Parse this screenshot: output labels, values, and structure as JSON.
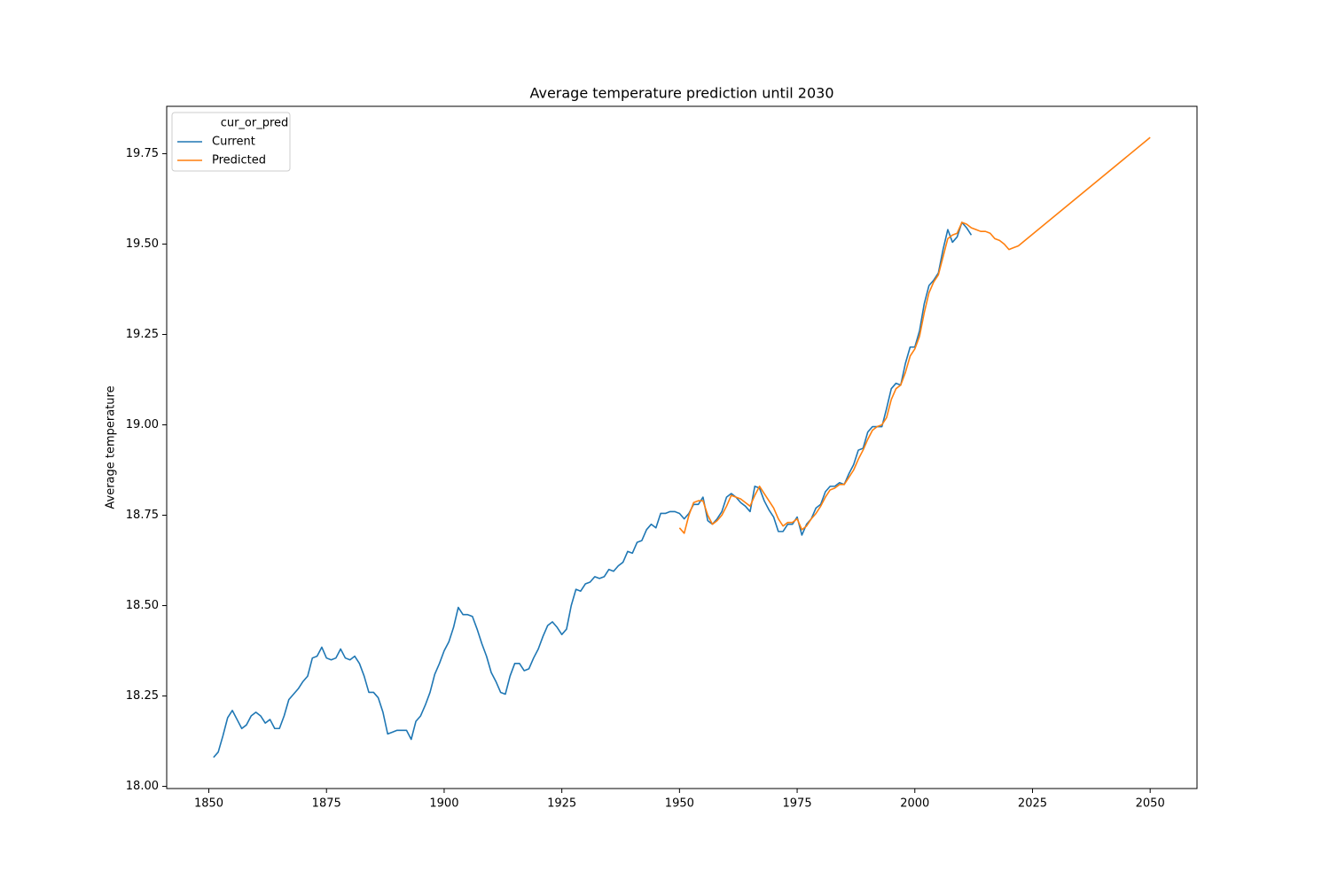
{
  "chart_data": {
    "type": "line",
    "title": "Average temperature prediction until 2030",
    "y_label": "Average temperature",
    "legend_title": "cur_or_pred",
    "legend_position": "upper left",
    "xlim": [
      1841.05,
      2059.95
    ],
    "ylim": [
      17.994,
      19.881
    ],
    "xticks": [
      1850,
      1875,
      1900,
      1925,
      1950,
      1975,
      2000,
      2025,
      2050
    ],
    "yticks": [
      {
        "value": 18,
        "label": "18.00"
      },
      18.25,
      {
        "value": 18.5,
        "label": "18.50"
      },
      18.75,
      {
        "value": 19,
        "label": "19.00"
      },
      19.25,
      {
        "value": 19.5,
        "label": "19.50"
      },
      19.75
    ],
    "series": [
      {
        "name": "Current",
        "color": "#1f77b4",
        "x": [
          1851,
          1852,
          1853,
          1854,
          1855,
          1856,
          1857,
          1858,
          1859,
          1860,
          1861,
          1862,
          1863,
          1864,
          1865,
          1866,
          1867,
          1868,
          1869,
          1870,
          1871,
          1872,
          1873,
          1874,
          1875,
          1876,
          1877,
          1878,
          1879,
          1880,
          1881,
          1882,
          1883,
          1884,
          1885,
          1886,
          1887,
          1888,
          1889,
          1890,
          1891,
          1892,
          1893,
          1894,
          1895,
          1896,
          1897,
          1898,
          1899,
          1900,
          1901,
          1902,
          1903,
          1904,
          1905,
          1906,
          1907,
          1908,
          1909,
          1910,
          1911,
          1912,
          1913,
          1914,
          1915,
          1916,
          1917,
          1918,
          1919,
          1920,
          1921,
          1922,
          1923,
          1924,
          1925,
          1926,
          1927,
          1928,
          1929,
          1930,
          1931,
          1932,
          1933,
          1934,
          1935,
          1936,
          1937,
          1938,
          1939,
          1940,
          1941,
          1942,
          1943,
          1944,
          1945,
          1946,
          1947,
          1948,
          1949,
          1950,
          1951,
          1952,
          1953,
          1954,
          1955,
          1956,
          1957,
          1958,
          1959,
          1960,
          1961,
          1962,
          1963,
          1964,
          1965,
          1966,
          1967,
          1968,
          1969,
          1970,
          1971,
          1972,
          1973,
          1974,
          1975,
          1976,
          1977,
          1978,
          1979,
          1980,
          1981,
          1982,
          1983,
          1984,
          1985,
          1986,
          1987,
          1988,
          1989,
          1990,
          1991,
          1992,
          1993,
          1994,
          1995,
          1996,
          1997,
          1998,
          1999,
          2000,
          2001,
          2002,
          2003,
          2004,
          2005,
          2006,
          2007,
          2008,
          2009,
          2010,
          2011,
          2012
        ],
        "values": [
          18.08,
          18.095,
          18.14,
          18.19,
          18.21,
          18.185,
          18.16,
          18.17,
          18.195,
          18.205,
          18.195,
          18.175,
          18.185,
          18.16,
          18.16,
          18.195,
          18.24,
          18.255,
          18.27,
          18.29,
          18.305,
          18.355,
          18.36,
          18.385,
          18.355,
          18.35,
          18.355,
          18.38,
          18.355,
          18.35,
          18.36,
          18.34,
          18.305,
          18.26,
          18.26,
          18.245,
          18.205,
          18.145,
          18.15,
          18.155,
          18.155,
          18.155,
          18.13,
          18.18,
          18.195,
          18.225,
          18.26,
          18.31,
          18.34,
          18.375,
          18.4,
          18.44,
          18.495,
          18.475,
          18.475,
          18.47,
          18.435,
          18.395,
          18.36,
          18.315,
          18.29,
          18.26,
          18.255,
          18.305,
          18.34,
          18.34,
          18.32,
          18.325,
          18.355,
          18.38,
          18.415,
          18.445,
          18.455,
          18.44,
          18.42,
          18.435,
          18.5,
          18.545,
          18.54,
          18.56,
          18.565,
          18.58,
          18.575,
          18.58,
          18.6,
          18.595,
          18.61,
          18.62,
          18.65,
          18.645,
          18.675,
          18.68,
          18.71,
          18.725,
          18.715,
          18.755,
          18.755,
          18.76,
          18.76,
          18.755,
          18.74,
          18.755,
          18.78,
          18.78,
          18.8,
          18.735,
          18.725,
          18.74,
          18.76,
          18.8,
          18.81,
          18.8,
          18.785,
          18.775,
          18.76,
          18.83,
          18.825,
          18.79,
          18.765,
          18.745,
          18.705,
          18.705,
          18.725,
          18.725,
          18.745,
          18.695,
          18.725,
          18.74,
          18.77,
          18.78,
          18.815,
          18.83,
          18.83,
          18.84,
          18.835,
          18.865,
          18.89,
          18.93,
          18.935,
          18.98,
          18.995,
          18.995,
          18.995,
          19.045,
          19.1,
          19.115,
          19.11,
          19.17,
          19.215,
          19.215,
          19.26,
          19.335,
          19.385,
          19.4,
          19.42,
          19.485,
          19.54,
          19.505,
          19.52,
          19.56,
          19.545,
          19.525
        ]
      },
      {
        "name": "Predicted",
        "color": "#ff7f0e",
        "x": [
          1950,
          1951,
          1952,
          1953,
          1954,
          1955,
          1956,
          1957,
          1958,
          1959,
          1960,
          1961,
          1962,
          1963,
          1964,
          1965,
          1966,
          1967,
          1968,
          1969,
          1970,
          1971,
          1972,
          1973,
          1974,
          1975,
          1976,
          1977,
          1978,
          1979,
          1980,
          1981,
          1982,
          1983,
          1984,
          1985,
          1986,
          1987,
          1988,
          1989,
          1990,
          1991,
          1992,
          1993,
          1994,
          1995,
          1996,
          1997,
          1998,
          1999,
          2000,
          2001,
          2002,
          2003,
          2004,
          2005,
          2006,
          2007,
          2008,
          2009,
          2010,
          2011,
          2012,
          2013,
          2014,
          2015,
          2016,
          2017,
          2018,
          2019,
          2020,
          2021,
          2022,
          2050
        ],
        "values": [
          18.715,
          18.7,
          18.75,
          18.785,
          18.79,
          18.79,
          18.75,
          18.725,
          18.735,
          18.75,
          18.775,
          18.805,
          18.8,
          18.795,
          18.785,
          18.775,
          18.805,
          18.83,
          18.81,
          18.79,
          18.77,
          18.74,
          18.72,
          18.73,
          18.73,
          18.74,
          18.71,
          18.72,
          18.74,
          18.755,
          18.775,
          18.8,
          18.82,
          18.825,
          18.835,
          18.835,
          18.855,
          18.875,
          18.905,
          18.93,
          18.96,
          18.985,
          18.995,
          19.0,
          19.02,
          19.07,
          19.1,
          19.11,
          19.145,
          19.19,
          19.21,
          19.245,
          19.31,
          19.365,
          19.395,
          19.415,
          19.465,
          19.515,
          19.525,
          19.53,
          19.56,
          19.555,
          19.545,
          19.54,
          19.535,
          19.535,
          19.53,
          19.515,
          19.51,
          19.5,
          19.485,
          19.49,
          19.495,
          19.795
        ]
      }
    ]
  }
}
